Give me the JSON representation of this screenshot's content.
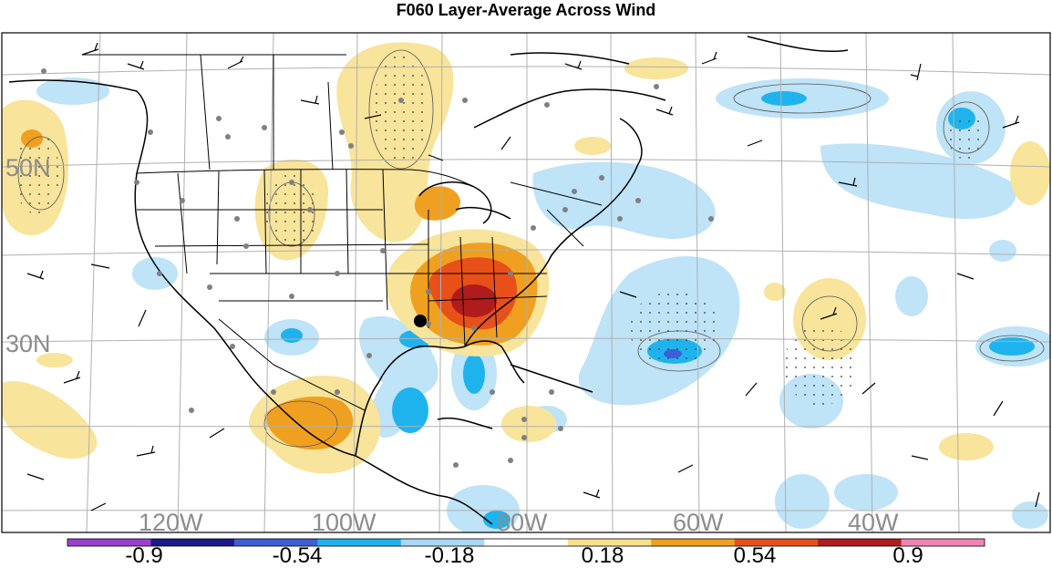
{
  "title": "F060 Layer-Average Across Wind",
  "latitude_labels": [
    "50N",
    "30N"
  ],
  "longitude_labels": [
    "120W",
    "100W",
    "80W",
    "60W",
    "40W"
  ],
  "colorbar": {
    "colors": [
      "#9b3fd0",
      "#1a1a8c",
      "#3d5fd6",
      "#1fb3ee",
      "#a7d8f5",
      "#ffffff",
      "#f8e08c",
      "#f0a020",
      "#e8501a",
      "#b01c1c",
      "#f283b5"
    ],
    "labels": [
      "-0.9",
      "-0.54",
      "-0.18",
      "0.18",
      "0.54",
      "0.9"
    ]
  },
  "colors": {
    "light_blue": "#bfe3f7",
    "blue": "#1fb3ee",
    "dark_blue": "#3d5fd6",
    "yellow": "#f8e49a",
    "orange": "#f0a020",
    "red_orange": "#e8501a",
    "dark_red": "#b01c1c"
  }
}
